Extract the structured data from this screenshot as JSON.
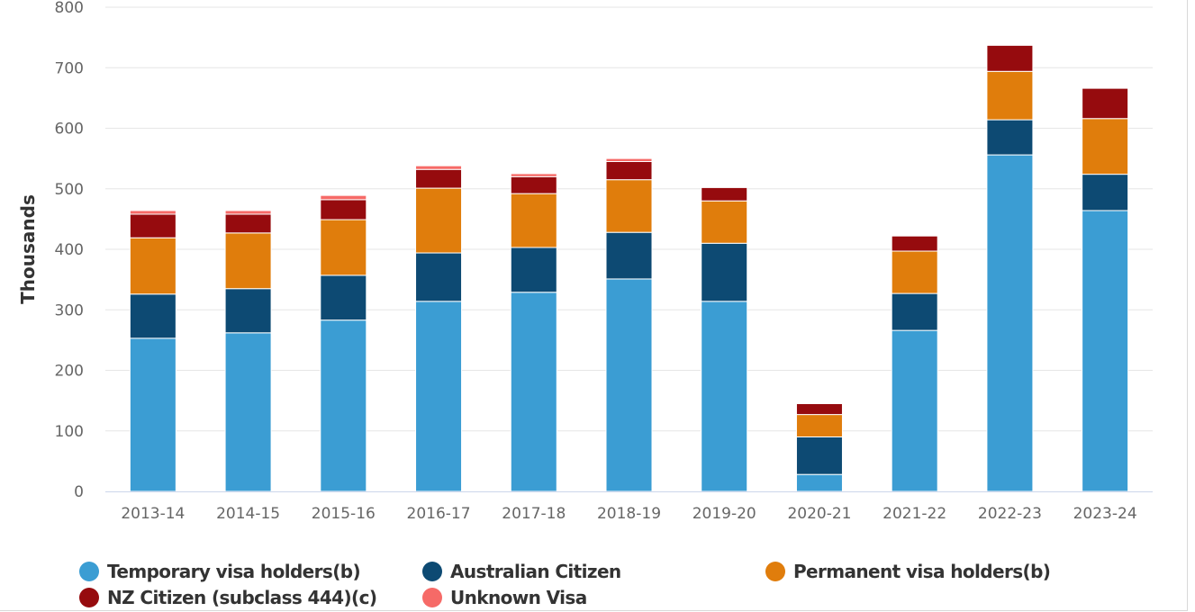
{
  "chart_data": {
    "type": "bar",
    "stacked": true,
    "title": "",
    "xlabel": "",
    "ylabel": "Thousands",
    "ylim": [
      0,
      800
    ],
    "yticks": [
      "0",
      "100",
      "200",
      "300",
      "400",
      "500",
      "600",
      "700",
      "800"
    ],
    "grid": true,
    "legend_position": "bottom",
    "categories": [
      "2013-14",
      "2014-15",
      "2015-16",
      "2016-17",
      "2017-18",
      "2018-19",
      "2019-20",
      "2020-21",
      "2021-22",
      "2022-23",
      "2023-24"
    ],
    "series": [
      {
        "name": "Temporary visa holders(b)",
        "color": "#3b9dd3",
        "values": [
          253,
          262,
          283,
          314,
          329,
          351,
          314,
          28,
          266,
          556,
          464
        ]
      },
      {
        "name": "Australian Citizen",
        "color": "#0d4a73",
        "values": [
          73,
          73,
          74,
          80,
          74,
          77,
          96,
          62,
          61,
          58,
          60
        ]
      },
      {
        "name": "Permanent visa holders(b)",
        "color": "#e07d0c",
        "values": [
          93,
          92,
          92,
          107,
          89,
          87,
          70,
          37,
          70,
          80,
          92
        ]
      },
      {
        "name": "NZ Citizen (subclass 444)(c)",
        "color": "#960b0e",
        "values": [
          39,
          31,
          33,
          31,
          28,
          30,
          22,
          18,
          25,
          43,
          50
        ]
      },
      {
        "name": "Unknown Visa",
        "color": "#f66a67",
        "values": [
          6,
          6,
          7,
          6,
          5,
          5,
          0,
          0,
          0,
          0,
          0
        ]
      }
    ]
  }
}
